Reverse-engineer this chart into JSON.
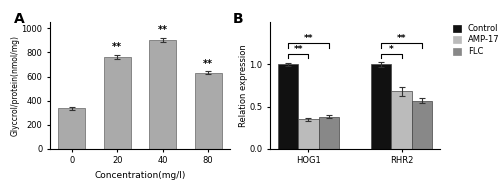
{
  "panel_a": {
    "categories": [
      "0",
      "20",
      "40",
      "80"
    ],
    "values": [
      335,
      760,
      905,
      630
    ],
    "errors": [
      10,
      18,
      15,
      12
    ],
    "bar_color": "#aaaaaa",
    "xlabel": "Concentration(mg/l)",
    "ylabel": "Glyccrol/protein(nmol/mg)",
    "ylim": [
      0,
      1050
    ],
    "yticks": [
      0,
      200,
      400,
      600,
      800,
      1000
    ],
    "sig_labels": [
      "",
      "**",
      "**",
      "**"
    ],
    "label": "A"
  },
  "panel_b": {
    "groups": [
      "HOG1",
      "RHR2"
    ],
    "series": [
      "Control",
      "AMP-17",
      "FLC"
    ],
    "values": [
      [
        1.0,
        0.35,
        0.38
      ],
      [
        1.0,
        0.68,
        0.57
      ]
    ],
    "errors": [
      [
        0.02,
        0.02,
        0.02
      ],
      [
        0.03,
        0.05,
        0.03
      ]
    ],
    "bar_colors": [
      "#111111",
      "#bbbbbb",
      "#888888"
    ],
    "ylabel": "Relation expression",
    "ylim": [
      0,
      1.5
    ],
    "yticks": [
      0.0,
      0.5,
      1.0
    ],
    "label": "B"
  },
  "legend": {
    "entries": [
      "Control",
      "AMP-17",
      "FLC"
    ],
    "colors": [
      "#111111",
      "#bbbbbb",
      "#888888"
    ]
  },
  "figure_bg": "#ffffff"
}
